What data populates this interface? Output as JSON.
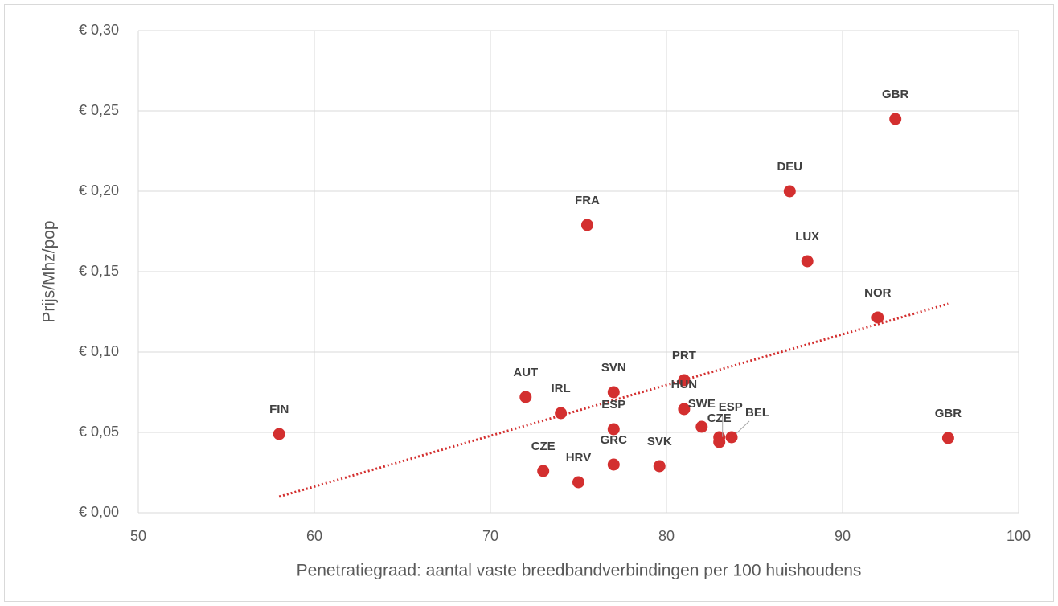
{
  "chart_data": {
    "type": "scatter",
    "color": "#d32f2f",
    "x_label": "Penetratiegraad: aantal vaste breedbandverbindingen per 100 huishoudens",
    "y_label": "Prijs/Mhz/pop",
    "labels": [
      "FIN",
      "AUT",
      "IRL",
      "CZE",
      "HRV",
      "FRA",
      "SVN",
      "ESP",
      "GRC",
      "SVK",
      "PRT",
      "HUN",
      "SWE",
      "CZE",
      "ESP",
      "BEL",
      "DEU",
      "LUX",
      "NOR",
      "GBR",
      "GBR"
    ],
    "x": [
      58,
      72,
      74,
      73,
      75,
      75.5,
      77,
      77,
      77,
      79.6,
      81,
      81,
      82,
      83,
      83,
      83.7,
      87,
      88,
      92,
      93,
      96
    ],
    "values": [
      0.049,
      0.072,
      0.062,
      0.026,
      0.019,
      0.179,
      0.075,
      0.052,
      0.03,
      0.029,
      0.0825,
      0.0645,
      0.0535,
      0.047,
      0.044,
      0.047,
      0.2,
      0.1565,
      0.1215,
      0.245,
      0.0465
    ],
    "trendline": {
      "x": [
        58,
        96
      ],
      "values": [
        0.01,
        0.13
      ],
      "color": "#d32f2f"
    },
    "xlim": [
      50,
      100
    ],
    "xticks": [
      50,
      60,
      70,
      80,
      90,
      100
    ],
    "ylim": [
      0,
      0.3
    ],
    "yticks": [
      {
        "value": 0,
        "label": "€ 0,00"
      },
      {
        "value": 0.05,
        "label": "€ 0,05"
      },
      {
        "value": 0.1,
        "label": "€ 0,10"
      },
      {
        "value": 0.15,
        "label": "€ 0,15"
      },
      {
        "value": 0.2,
        "label": "€ 0,20"
      },
      {
        "value": 0.25,
        "label": "€ 0,25"
      },
      {
        "value": 0.3,
        "label": "€ 0,30"
      }
    ],
    "grid": true
  }
}
